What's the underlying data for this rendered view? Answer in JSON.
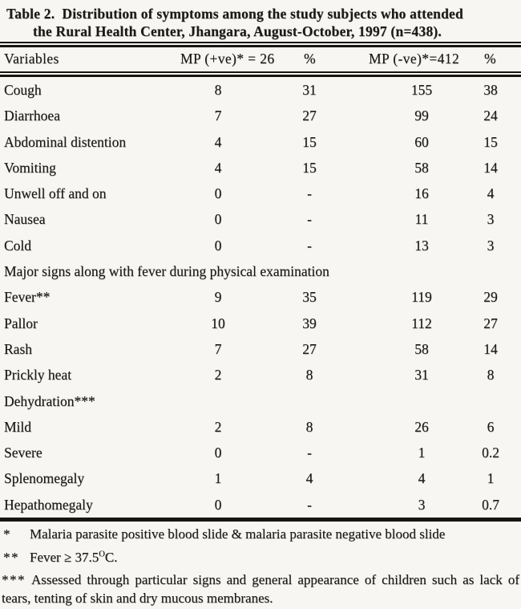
{
  "colors": {
    "background": "#f7f6f3",
    "ink": "#1b1a16",
    "rule": "#17150f"
  },
  "title": {
    "line1": "Table 2.  Distribution of symptoms among the study subjects who attended",
    "line2": "the Rural Health Center, Jhangara, August-October, 1997 (n=438)."
  },
  "table": {
    "headers": {
      "variables": "Variables",
      "mp_pos": "MP (+ve)* = 26",
      "pct_pos": "%",
      "mp_neg": "MP (-ve)*=412",
      "pct_neg": "%"
    },
    "rows": [
      {
        "type": "data",
        "label": "Cough",
        "mp_pos": "8",
        "mp_pos_pct": "31",
        "mp_neg": "155",
        "mp_neg_pct": "38"
      },
      {
        "type": "data",
        "label": "Diarrhoea",
        "mp_pos": "7",
        "mp_pos_pct": "27",
        "mp_neg": "99",
        "mp_neg_pct": "24"
      },
      {
        "type": "data",
        "label": "Abdominal distention",
        "mp_pos": "4",
        "mp_pos_pct": "15",
        "mp_neg": "60",
        "mp_neg_pct": "15"
      },
      {
        "type": "data",
        "label": "Vomiting",
        "mp_pos": "4",
        "mp_pos_pct": "15",
        "mp_neg": "58",
        "mp_neg_pct": "14"
      },
      {
        "type": "data",
        "label": "Unwell off and on",
        "mp_pos": "0",
        "mp_pos_pct": "-",
        "mp_neg": "16",
        "mp_neg_pct": "4"
      },
      {
        "type": "data",
        "label": "Nausea",
        "mp_pos": "0",
        "mp_pos_pct": "-",
        "mp_neg": "11",
        "mp_neg_pct": "3"
      },
      {
        "type": "data",
        "label": "Cold",
        "mp_pos": "0",
        "mp_pos_pct": "-",
        "mp_neg": "13",
        "mp_neg_pct": "3"
      },
      {
        "type": "section",
        "label": "Major signs along with fever during physical examination"
      },
      {
        "type": "data",
        "label": "Fever**",
        "mp_pos": "9",
        "mp_pos_pct": "35",
        "mp_neg": "119",
        "mp_neg_pct": "29"
      },
      {
        "type": "data",
        "label": "Pallor",
        "mp_pos": "10",
        "mp_pos_pct": "39",
        "mp_neg": "112",
        "mp_neg_pct": "27"
      },
      {
        "type": "data",
        "label": "Rash",
        "mp_pos": "7",
        "mp_pos_pct": "27",
        "mp_neg": "58",
        "mp_neg_pct": "14"
      },
      {
        "type": "data",
        "label": "Prickly heat",
        "mp_pos": "2",
        "mp_pos_pct": "8",
        "mp_neg": "31",
        "mp_neg_pct": "8"
      },
      {
        "type": "section",
        "label": "Dehydration***"
      },
      {
        "type": "data",
        "label": "Mild",
        "mp_pos": "2",
        "mp_pos_pct": "8",
        "mp_neg": "26",
        "mp_neg_pct": "6"
      },
      {
        "type": "data",
        "label": "Severe",
        "mp_pos": "0",
        "mp_pos_pct": "-",
        "mp_neg": "1",
        "mp_neg_pct": "0.2"
      },
      {
        "type": "data",
        "label": "Splenomegaly",
        "mp_pos": "1",
        "mp_pos_pct": "4",
        "mp_neg": "4",
        "mp_neg_pct": "1"
      },
      {
        "type": "data",
        "label": "Hepathomegaly",
        "mp_pos": "0",
        "mp_pos_pct": "-",
        "mp_neg": "3",
        "mp_neg_pct": "0.7"
      }
    ]
  },
  "footnotes": {
    "fn1": {
      "marker": "*",
      "text": "Malaria parasite positive blood slide & malaria parasite negative blood slide"
    },
    "fn2": {
      "marker": "**",
      "pre": "Fever ≥ 37.5",
      "sup": "O",
      "post": "C."
    },
    "fn3": {
      "marker": "***",
      "text": "Assessed through particular signs and general appearance of children such as lack of tears, tenting of skin and dry mucous membranes."
    }
  }
}
